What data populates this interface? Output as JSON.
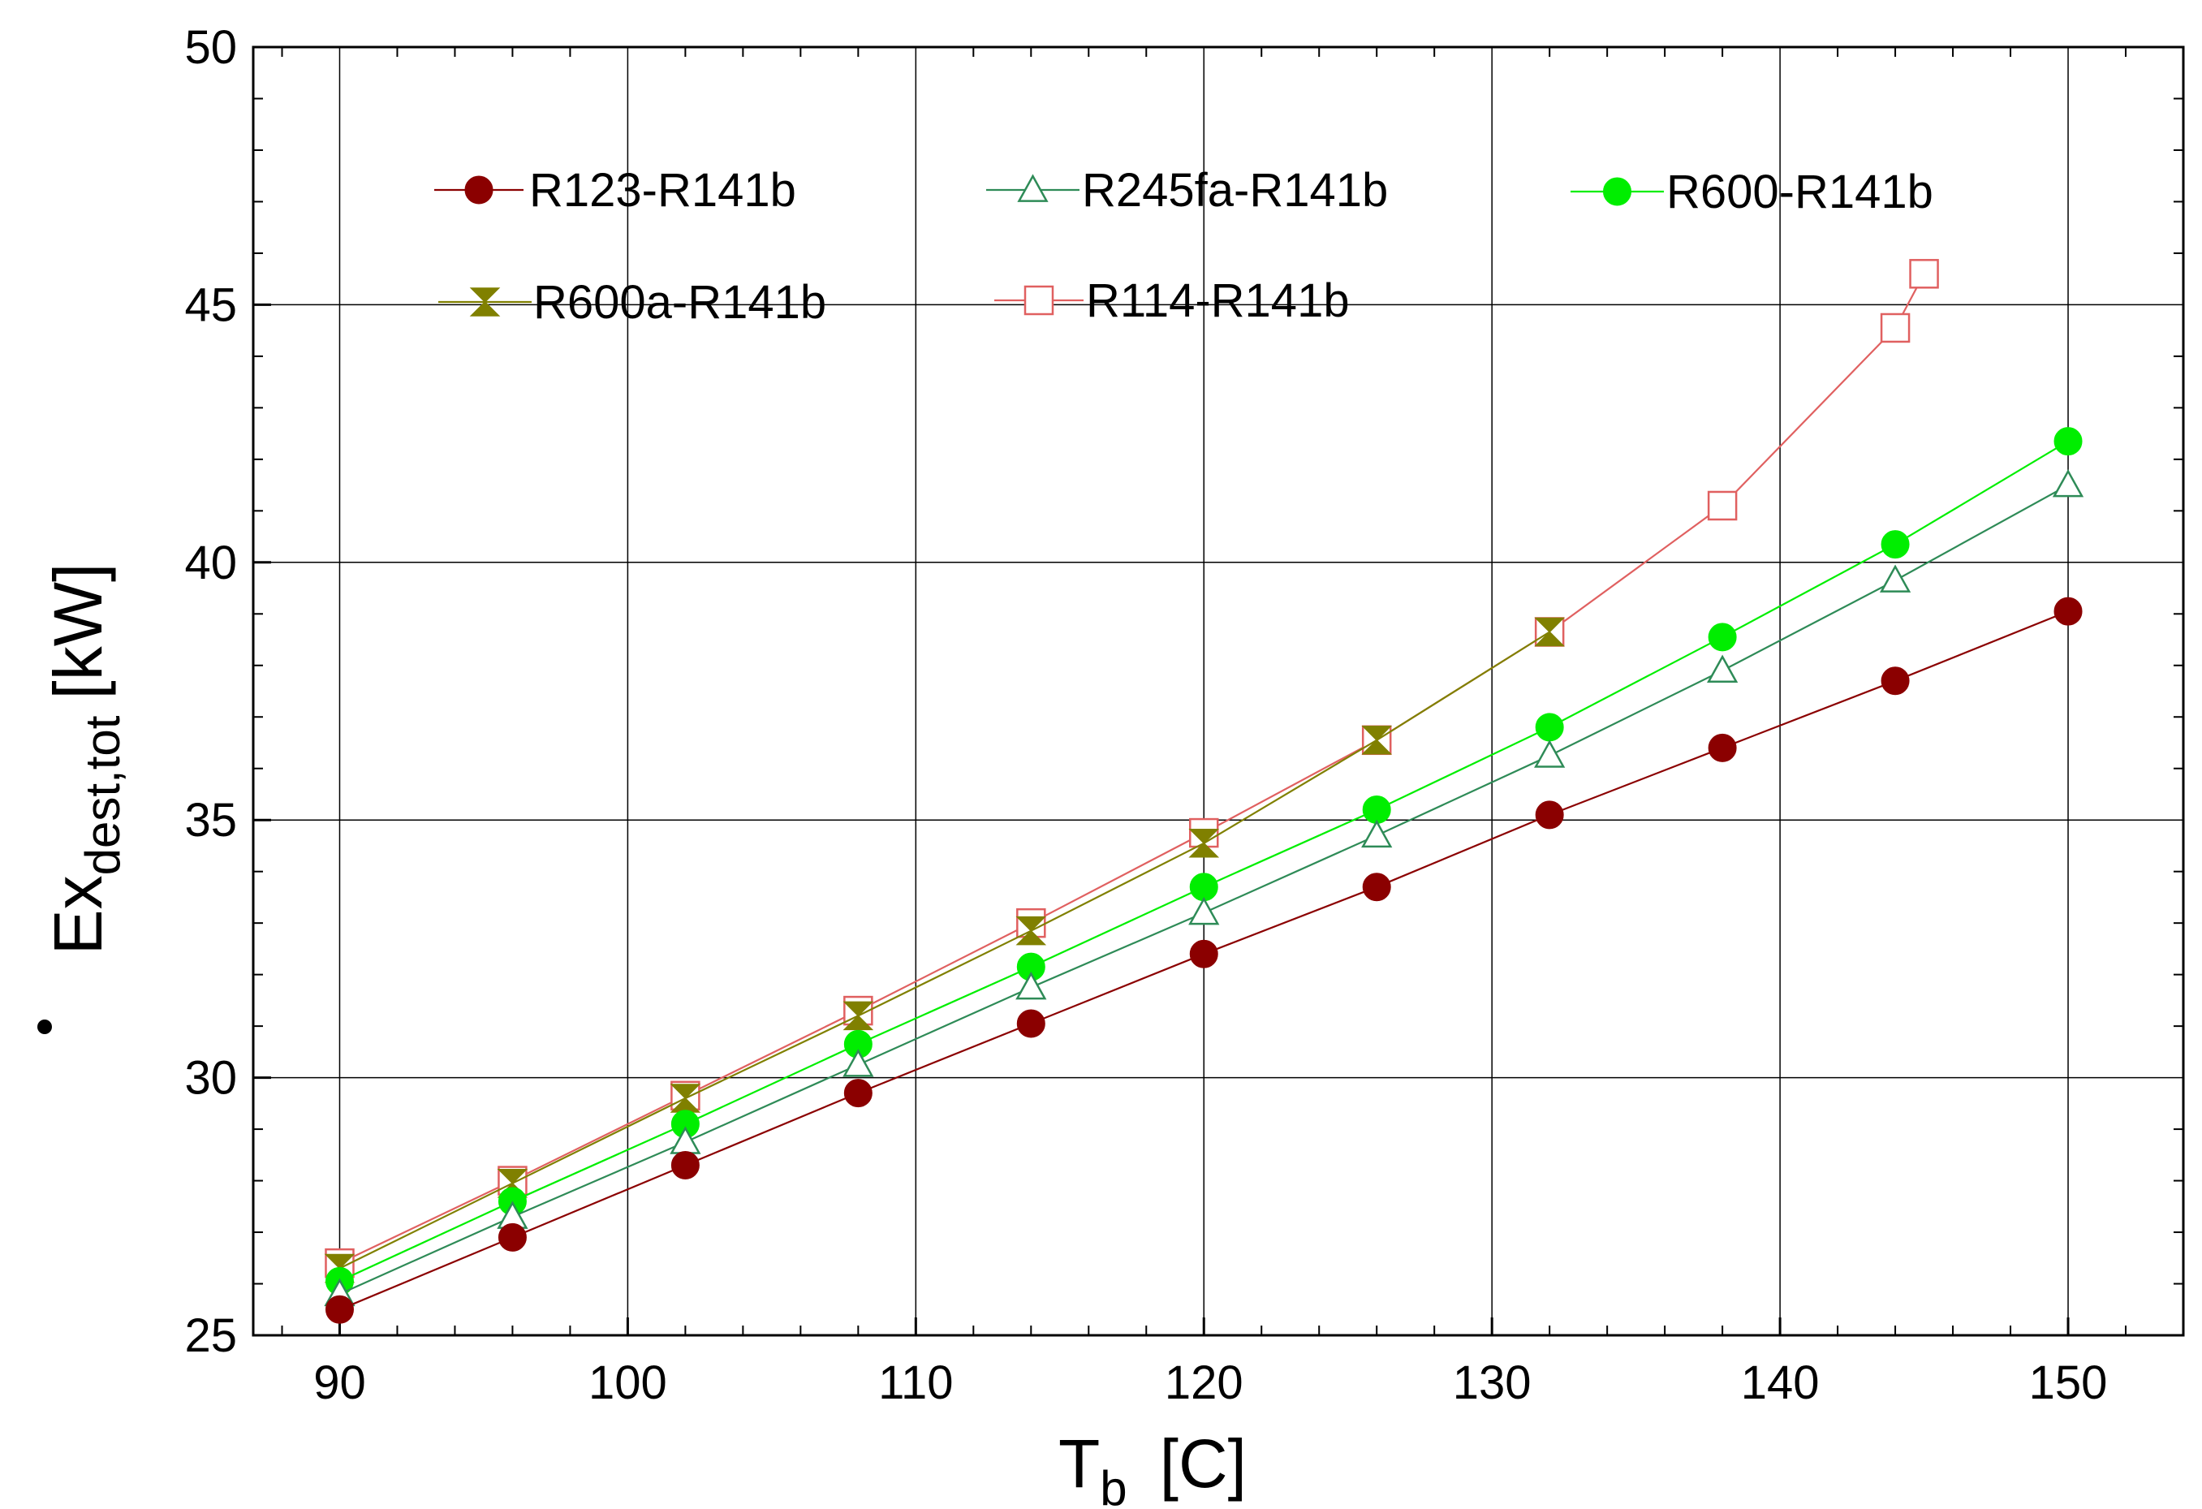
{
  "chart_data": {
    "type": "line",
    "title": "",
    "xlabel": {
      "main": "T",
      "sub": "b",
      "unit": "[C]"
    },
    "ylabel": {
      "main": "Ex",
      "sub": "dest,tot",
      "unit": "[kW]"
    },
    "xlim": [
      87,
      154
    ],
    "ylim": [
      25,
      50
    ],
    "xticks": [
      90,
      100,
      110,
      120,
      130,
      140,
      150
    ],
    "yticks": [
      25,
      30,
      35,
      40,
      45,
      50
    ],
    "xtick_labels": [
      "90",
      "100",
      "110",
      "120",
      "130",
      "140",
      "150"
    ],
    "ytick_labels": [
      "25",
      "30",
      "35",
      "40",
      "45",
      "50"
    ],
    "grid": true,
    "legend_position": "top",
    "series": [
      {
        "name": "R123-R141b",
        "color": "#8b0000",
        "marker": "filled-circle",
        "x": [
          90,
          96,
          102,
          108,
          114,
          120,
          126,
          132,
          138,
          144,
          150
        ],
        "y": [
          25.5,
          26.9,
          28.3,
          29.7,
          31.05,
          32.4,
          33.7,
          35.1,
          36.4,
          37.7,
          39.05
        ]
      },
      {
        "name": "R245fa-R141b",
        "color": "#2e8b57",
        "marker": "open-triangle",
        "x": [
          90,
          96,
          102,
          108,
          114,
          120,
          126,
          132,
          138,
          144,
          150
        ],
        "y": [
          25.8,
          27.3,
          28.75,
          30.25,
          31.75,
          33.2,
          34.7,
          36.25,
          37.9,
          39.65,
          41.5
        ]
      },
      {
        "name": "R600-R141b",
        "color": "#00ee00",
        "marker": "filled-circle",
        "x": [
          90,
          96,
          102,
          108,
          114,
          120,
          126,
          132,
          138,
          144,
          150
        ],
        "y": [
          26.05,
          27.6,
          29.1,
          30.65,
          32.15,
          33.7,
          35.2,
          36.8,
          38.55,
          40.35,
          42.35
        ]
      },
      {
        "name": "R600a-R141b",
        "color": "#808000",
        "marker": "bowtie",
        "x": [
          90,
          96,
          102,
          108,
          114,
          120,
          126,
          132
        ],
        "y": [
          26.3,
          27.95,
          29.6,
          31.2,
          32.85,
          34.55,
          36.55,
          38.65
        ]
      },
      {
        "name": "R114-R141b",
        "color": "#e06060",
        "marker": "open-square",
        "x": [
          90,
          96,
          102,
          108,
          114,
          120,
          126,
          132,
          138,
          144,
          145
        ],
        "y": [
          26.4,
          28.0,
          29.65,
          31.3,
          33.0,
          34.75,
          36.55,
          38.65,
          41.1,
          44.55,
          45.6
        ]
      }
    ]
  }
}
